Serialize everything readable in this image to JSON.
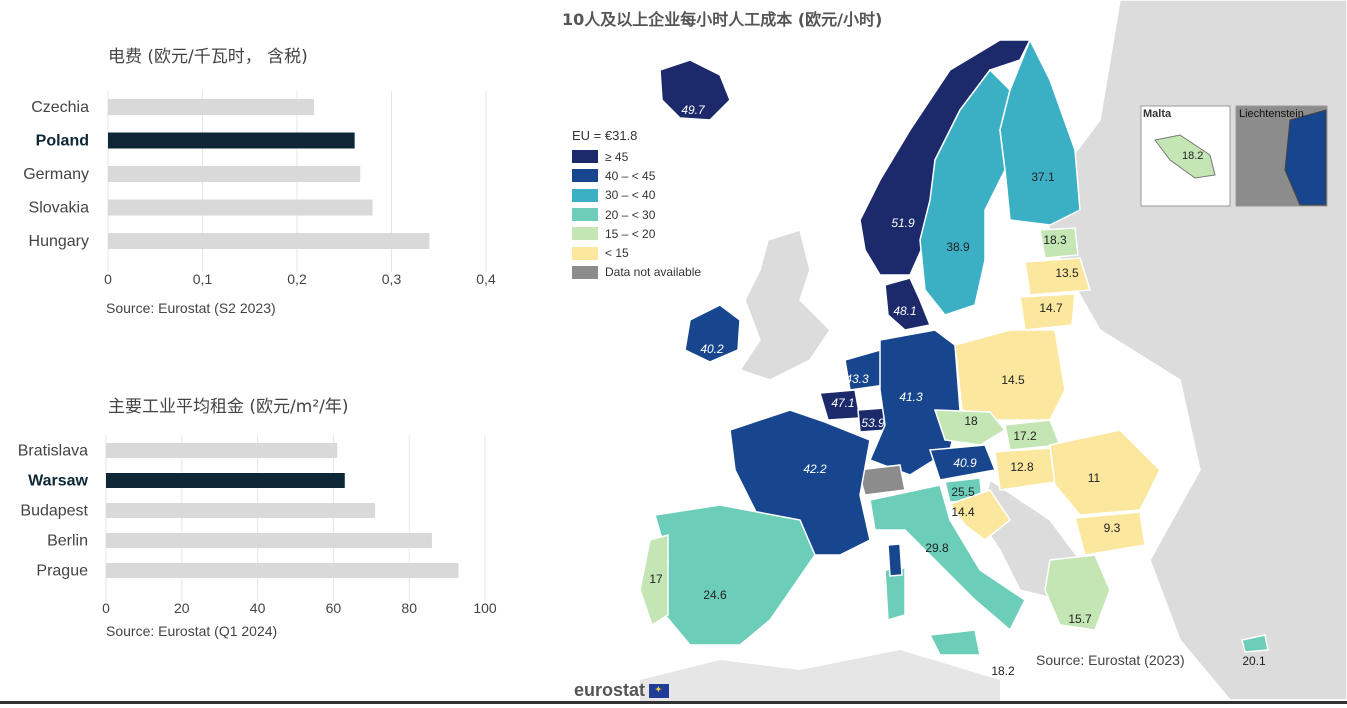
{
  "electricity_chart": {
    "title": "电费 (欧元/千瓦时， 含税)",
    "source": "Source: Eurostat (S2 2023)",
    "chart_data": {
      "type": "bar",
      "orientation": "horizontal",
      "categories": [
        "Czechia",
        "Poland",
        "Germany",
        "Slovakia",
        "Hungary"
      ],
      "values": [
        0.218,
        0.261,
        0.267,
        0.28,
        0.34
      ],
      "highlight": "Poland",
      "xticks": [
        "0",
        "0,1",
        "0,2",
        "0,3",
        "0,4"
      ],
      "xlim": [
        0,
        0.4
      ],
      "grid": true,
      "colors": {
        "bar": "#d9d9d9",
        "highlight": "#0d2736"
      }
    }
  },
  "rent_chart": {
    "title": "主要工业平均租金 (欧元/m²/年)",
    "source": "Source: Eurostat (Q1 2024)",
    "chart_data": {
      "type": "bar",
      "orientation": "horizontal",
      "categories": [
        "Bratislava",
        "Warsaw",
        "Budapest",
        "Berlin",
        "Prague"
      ],
      "values": [
        61,
        63,
        71,
        86,
        93
      ],
      "highlight": "Warsaw",
      "xticks": [
        "0",
        "20",
        "40",
        "60",
        "80",
        "100"
      ],
      "xlim": [
        0,
        100
      ],
      "grid": true,
      "colors": {
        "bar": "#d9d9d9",
        "highlight": "#0d2736"
      }
    }
  },
  "labour_map": {
    "title": "10人及以上企业每小时人工成本 (欧元/小时)",
    "source": "Source: Eurostat (2023)",
    "logo_text": "eurostat",
    "legend": {
      "header": "EU = €31.8",
      "items": [
        {
          "label": "≥ 45",
          "color": "#1c2a6b"
        },
        {
          "label": "40 – < 45",
          "color": "#17468f"
        },
        {
          "label": "30 – < 40",
          "color": "#3bb0c4"
        },
        {
          "label": "20 – < 30",
          "color": "#6ccdb9"
        },
        {
          "label": "15 – < 20",
          "color": "#c3e6b4"
        },
        {
          "label": "< 15",
          "color": "#fbe79e"
        },
        {
          "label": "Data not available",
          "color": "#8c8c8c"
        }
      ]
    },
    "insets": {
      "malta_label": "Malta",
      "malta_value": "18.2",
      "liechtenstein_label": "Liechtenstein"
    },
    "values": {
      "iceland": "49.7",
      "norway": "51.9",
      "sweden": "38.9",
      "finland": "37.1",
      "denmark": "48.1",
      "ireland": "40.2",
      "netherlands": "43.3",
      "belgium": "47.1",
      "luxembourg": "53.9",
      "germany": "41.3",
      "france": "42.2",
      "poland": "14.5",
      "czechia": "18",
      "slovakia": "17.2",
      "austria": "40.9",
      "hungary": "12.8",
      "romania": "11",
      "bulgaria": "9.3",
      "slovenia": "25.5",
      "croatia": "14.4",
      "italy": "29.8",
      "spain": "24.6",
      "portugal": "17",
      "greece": "15.7",
      "cyprus": "20.1",
      "estonia": "18.3",
      "latvia": "13.5",
      "lithuania": "14.7",
      "malta": "18.2"
    }
  }
}
